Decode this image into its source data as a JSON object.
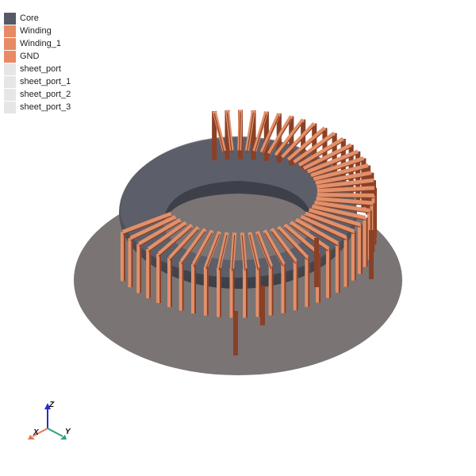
{
  "legend": {
    "items": [
      {
        "label": "Core",
        "color": "#555a66"
      },
      {
        "label": "Winding",
        "color": "#e88a66"
      },
      {
        "label": "Winding_1",
        "color": "#e88a66"
      },
      {
        "label": "GND",
        "color": "#e88a66"
      },
      {
        "label": "sheet_port",
        "color": "#e6e6e6"
      },
      {
        "label": "sheet_port_1",
        "color": "#e6e6e6"
      },
      {
        "label": "sheet_port_2",
        "color": "#e6e6e6"
      },
      {
        "label": "sheet_port_3",
        "color": "#e6e6e6"
      }
    ]
  },
  "axes": {
    "x_label": "X",
    "y_label": "Y",
    "z_label": "Z",
    "x_color": "#e27a55",
    "y_color": "#2aa37a",
    "z_color": "#2b2bcc"
  },
  "colors": {
    "ground": "#7a7474",
    "core": "#4a4c55",
    "copper_light": "#e2906a",
    "copper_dark": "#8a4026"
  }
}
